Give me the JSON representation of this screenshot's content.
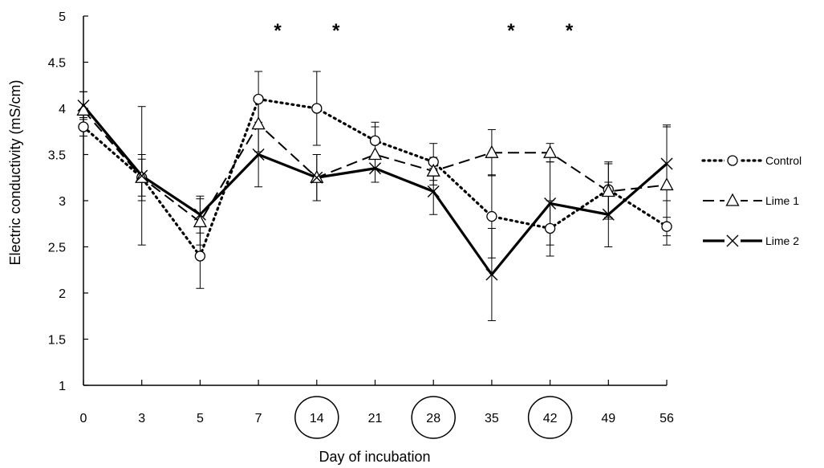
{
  "chart_data": {
    "type": "line",
    "xlabel": "Day of incubation",
    "ylabel": "Electric conductivity (mS/cm)",
    "categories": [
      "0",
      "3",
      "5",
      "7",
      "14",
      "21",
      "28",
      "35",
      "42",
      "49",
      "56"
    ],
    "circled_categories": [
      "14",
      "28",
      "42"
    ],
    "ylim": [
      1,
      5
    ],
    "yticks": [
      "1",
      "1.5",
      "2",
      "2.5",
      "3",
      "3.5",
      "4",
      "4.5",
      "5"
    ],
    "significance_marker": "*",
    "significance_at": [
      "7",
      "14",
      "35",
      "42"
    ],
    "grid": false,
    "legend_position": "right",
    "series": [
      {
        "name": "Control",
        "marker": "circle",
        "line": "dotted",
        "values": [
          3.8,
          3.25,
          2.4,
          4.1,
          4.0,
          3.65,
          3.42,
          2.83,
          2.7,
          3.12,
          2.72
        ],
        "errors": [
          0.1,
          0.2,
          0.35,
          0.3,
          0.4,
          0.2,
          0.2,
          0.45,
          0.3,
          0.3,
          0.1
        ]
      },
      {
        "name": "Lime 1",
        "marker": "triangle",
        "line": "dashed",
        "values": [
          3.98,
          3.25,
          2.77,
          3.83,
          3.25,
          3.5,
          3.32,
          3.52,
          3.52,
          3.1,
          3.17
        ],
        "errors": [
          0.2,
          0.25,
          0.25,
          0.3,
          0.25,
          0.3,
          0.15,
          0.25,
          0.1,
          0.3,
          0.65
        ]
      },
      {
        "name": "Lime 2",
        "marker": "cross",
        "line": "solid",
        "values": [
          4.03,
          3.27,
          2.85,
          3.5,
          3.25,
          3.35,
          3.1,
          2.2,
          2.97,
          2.85,
          3.4
        ],
        "errors": [
          0.15,
          0.75,
          0.2,
          0.35,
          0.25,
          0.15,
          0.25,
          0.5,
          0.45,
          0.35,
          0.4
        ]
      }
    ]
  }
}
